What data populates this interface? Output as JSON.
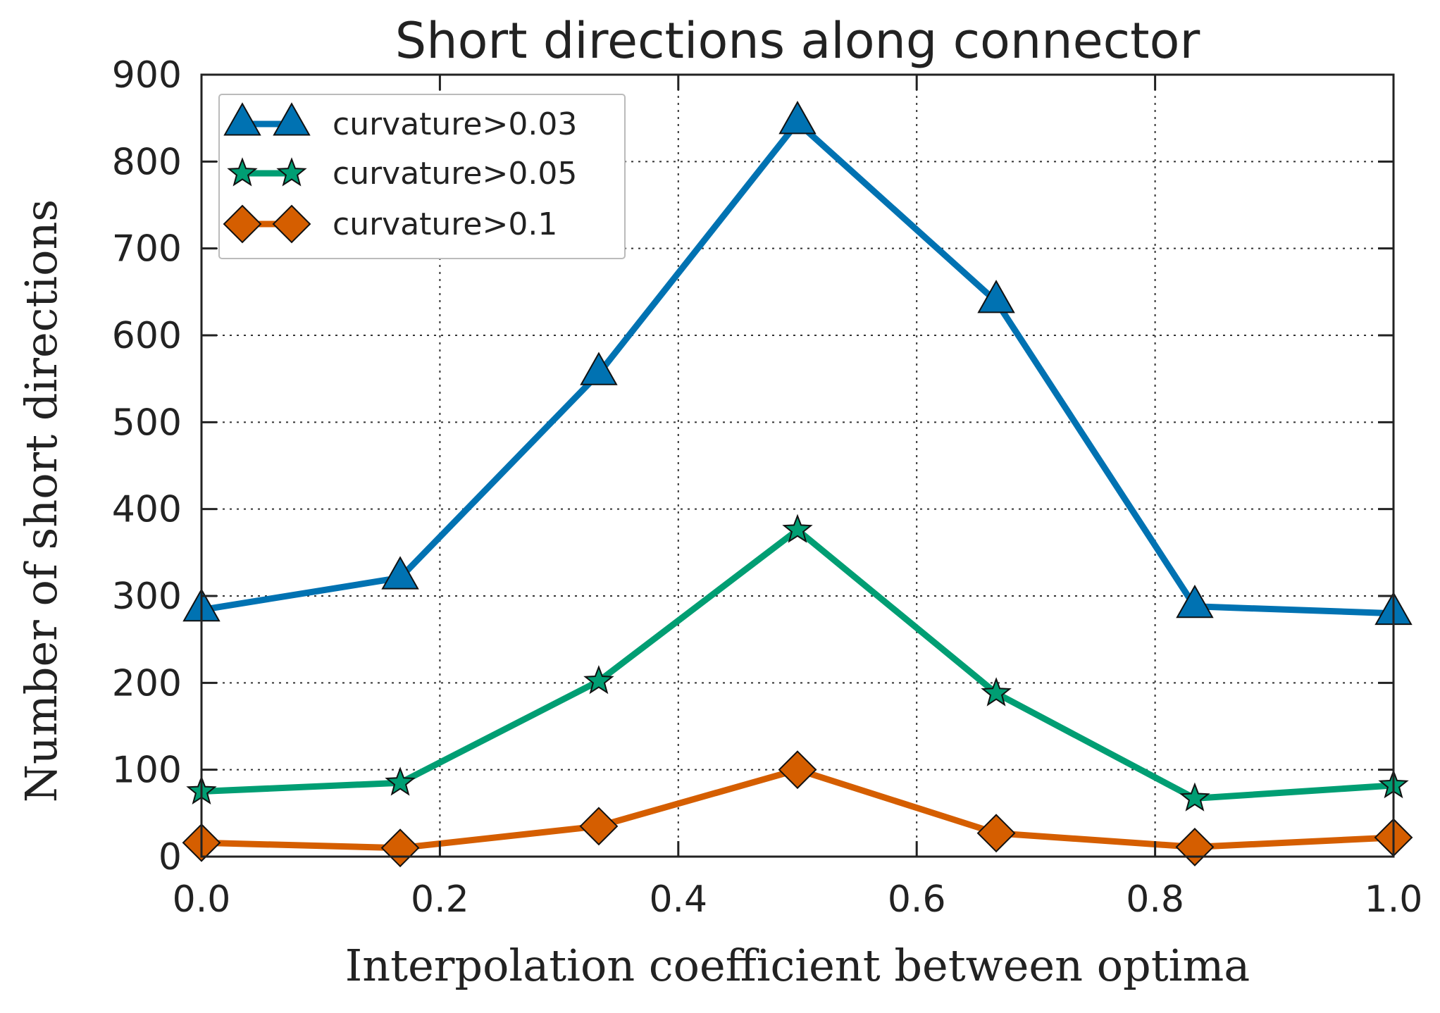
{
  "chart_data": {
    "type": "line",
    "title": "Short directions along connector",
    "xlabel": "Interpolation coefficient between optima",
    "ylabel": "Number of short directions",
    "xlim": [
      0.0,
      1.0
    ],
    "ylim": [
      0,
      900
    ],
    "xticks": [
      0.0,
      0.2,
      0.4,
      0.6,
      0.8,
      1.0
    ],
    "xtick_labels": [
      "0.0",
      "0.2",
      "0.4",
      "0.6",
      "0.8",
      "1.0"
    ],
    "yticks": [
      0,
      100,
      200,
      300,
      400,
      500,
      600,
      700,
      800,
      900
    ],
    "ytick_labels": [
      "0",
      "100",
      "200",
      "300",
      "400",
      "500",
      "600",
      "700",
      "800",
      "900"
    ],
    "grid": true,
    "legend_position": "top-left",
    "x": [
      0.0,
      0.1667,
      0.3333,
      0.5,
      0.6667,
      0.8333,
      1.0
    ],
    "series": [
      {
        "name": "curvature>0.03",
        "marker": "triangle",
        "color": "#0072B2",
        "values": [
          284,
          321,
          556,
          845,
          639,
          288,
          280
        ]
      },
      {
        "name": "curvature>0.05",
        "marker": "star",
        "color": "#009E73",
        "values": [
          75,
          85,
          202,
          376,
          188,
          67,
          82
        ]
      },
      {
        "name": "curvature>0.1",
        "marker": "diamond",
        "color": "#D55E00",
        "values": [
          16,
          10,
          35,
          100,
          27,
          11,
          22
        ]
      }
    ]
  }
}
